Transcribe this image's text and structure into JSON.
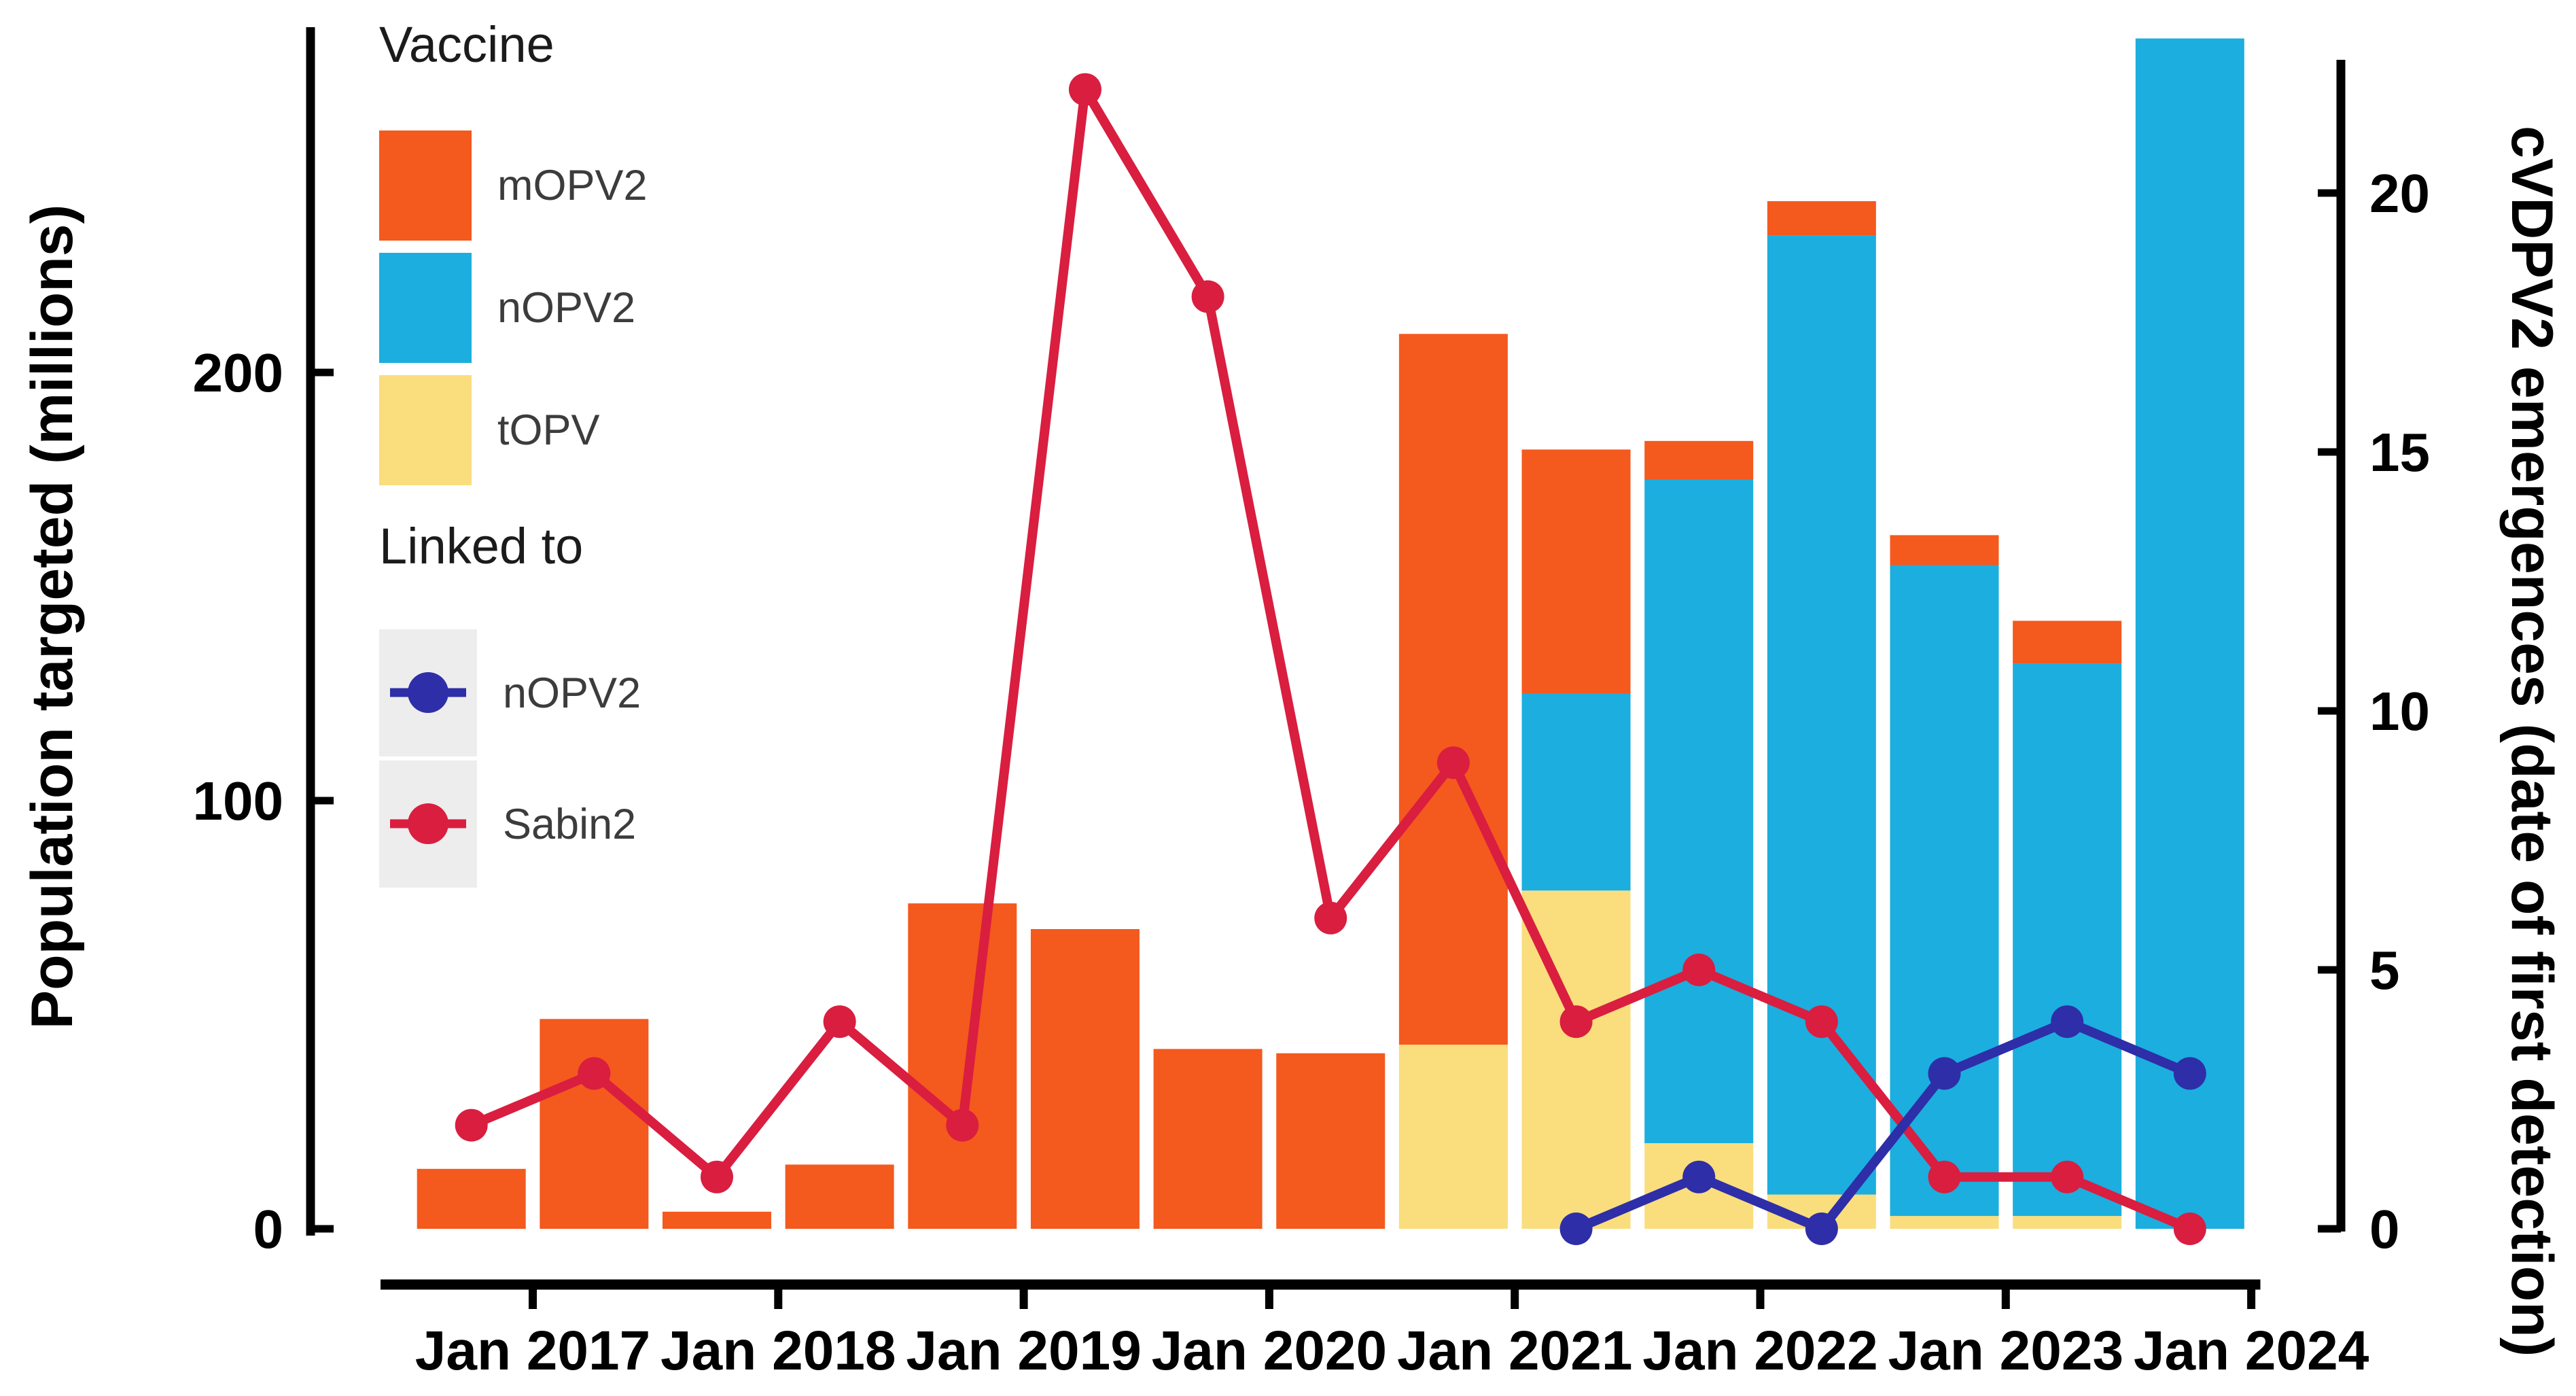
{
  "page": {
    "background": "#ffffff"
  },
  "legend_vaccine": {
    "title": "Vaccine",
    "items": [
      {
        "label": "mOPV2",
        "color": "#F4591E"
      },
      {
        "label": "nOPV2",
        "color": "#1CAEDE"
      },
      {
        "label": "tOPV",
        "color": "#FADD7D"
      }
    ]
  },
  "legend_linked": {
    "title": "Linked to",
    "key_background": "#EDEDED",
    "items": [
      {
        "label": "nOPV2",
        "color": "#2E2EA8"
      },
      {
        "label": "Sabin2",
        "color": "#D91E40"
      }
    ]
  },
  "chart_data": {
    "type": "bar",
    "subtype": "stacked-bars-with-line-overlay-dual-axis",
    "categories": [
      "2016 H2",
      "2017 H1",
      "2017 H2",
      "2018 H1",
      "2018 H2",
      "2019 H1",
      "2019 H2",
      "2020 H1",
      "2020 H2",
      "2021 H1",
      "2021 H2",
      "2022 H1",
      "2022 H2",
      "2023 H1",
      "2023 H2"
    ],
    "bar_series": [
      {
        "name": "tOPV",
        "color": "#FADD7D",
        "axis": "left",
        "values": [
          0,
          0,
          0,
          0,
          0,
          0,
          0,
          0,
          43,
          79,
          20,
          8,
          3,
          3,
          0
        ]
      },
      {
        "name": "nOPV2",
        "color": "#1CAEDE",
        "axis": "left",
        "values": [
          0,
          0,
          0,
          0,
          0,
          0,
          0,
          0,
          0,
          46,
          155,
          224,
          152,
          129,
          278
        ]
      },
      {
        "name": "mOPV2",
        "color": "#F4591E",
        "axis": "left",
        "values": [
          14,
          49,
          4,
          15,
          76,
          70,
          42,
          41,
          166,
          57,
          9,
          8,
          7,
          10,
          0
        ]
      }
    ],
    "line_series": [
      {
        "name": "nOPV2",
        "color": "#2E2EA8",
        "axis": "right",
        "values": [
          null,
          null,
          null,
          null,
          null,
          null,
          null,
          null,
          null,
          0,
          1,
          0,
          3,
          4,
          3
        ]
      },
      {
        "name": "Sabin2",
        "color": "#D91E40",
        "axis": "right",
        "values": [
          2,
          3,
          1,
          4,
          2,
          22,
          18,
          6,
          9,
          4,
          5,
          4,
          1,
          1,
          0
        ]
      }
    ],
    "x_axis": {
      "tick_labels": [
        "Jan 2017",
        "Jan 2018",
        "Jan 2019",
        "Jan 2020",
        "Jan 2021",
        "Jan 2022",
        "Jan 2023",
        "Jan 2024"
      ]
    },
    "left_axis": {
      "title": "Population targeted (millions)",
      "ticks": [
        0,
        100,
        200
      ],
      "range": [
        0,
        281
      ]
    },
    "right_axis": {
      "title": "cVDPV2 emergences (date of first detection)",
      "ticks": [
        0,
        5,
        10,
        15,
        20
      ],
      "range": [
        0,
        22.6
      ]
    },
    "grid": false,
    "legend_position": "top-left-inside"
  }
}
